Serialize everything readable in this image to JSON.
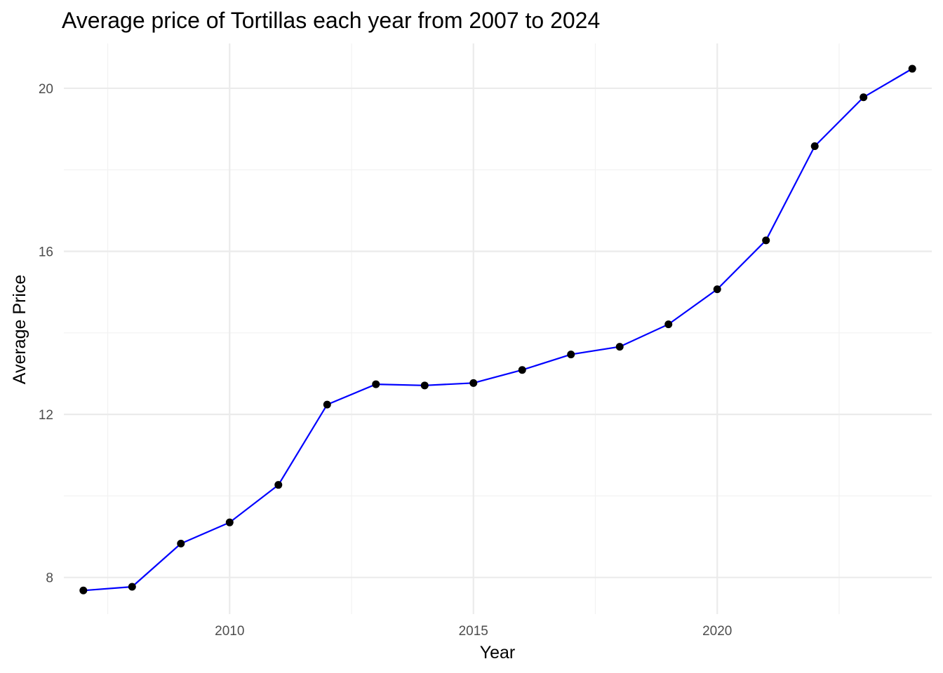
{
  "chart_data": {
    "type": "line",
    "title": "Average price of Tortillas each year from 2007 to 2024",
    "xlabel": "Year",
    "ylabel": "Average Price",
    "x": [
      2007,
      2008,
      2009,
      2010,
      2011,
      2012,
      2013,
      2014,
      2015,
      2016,
      2017,
      2018,
      2019,
      2020,
      2021,
      2022,
      2023,
      2024
    ],
    "series": [
      {
        "values": [
          7.68,
          7.77,
          8.83,
          9.35,
          10.27,
          12.24,
          12.74,
          12.71,
          12.77,
          13.09,
          13.47,
          13.66,
          14.21,
          15.07,
          16.27,
          18.58,
          19.78,
          20.48
        ]
      }
    ],
    "xticks": [
      2010,
      2015,
      2020
    ],
    "yticks": [
      8,
      12,
      16,
      20
    ],
    "xlim": [
      2006.6,
      2024.4
    ],
    "ylim": [
      7.1,
      21.1
    ],
    "grid": true,
    "colors": {
      "line": "#0000ff",
      "points": "#000000"
    }
  }
}
